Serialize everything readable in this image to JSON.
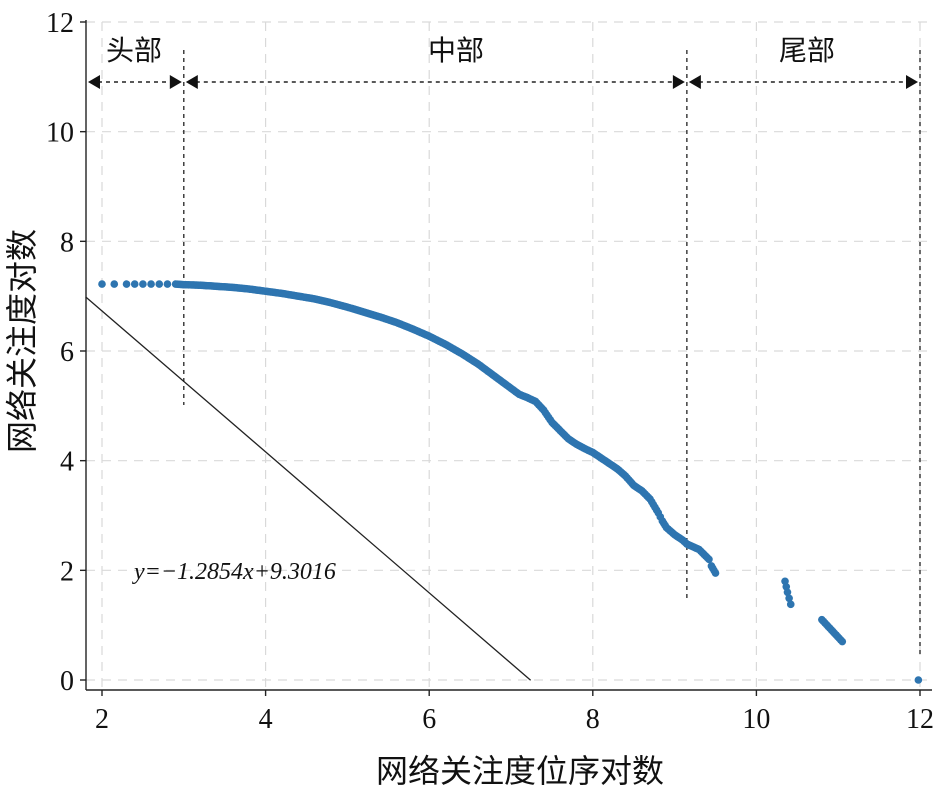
{
  "chart_data": {
    "type": "scatter",
    "title": "",
    "xlabel": "网络关注度位序对数",
    "ylabel": "网络关注度对数",
    "xlim": [
      1.8,
      12.2
    ],
    "ylim": [
      -0.2,
      12
    ],
    "xticks": [
      2,
      4,
      6,
      8,
      10,
      12
    ],
    "yticks": [
      0,
      2,
      4,
      6,
      8,
      10,
      12
    ],
    "grid": true,
    "segments": [
      {
        "label": "头部",
        "x_start": 1.8,
        "x_end": 3.0
      },
      {
        "label": "中部",
        "x_start": 3.0,
        "x_end": 9.15
      },
      {
        "label": "尾部",
        "x_start": 9.15,
        "x_end": 12.0
      }
    ],
    "fit": {
      "label": "y=−1.2854x+9.3016",
      "slope": -1.2854,
      "intercept": 9.3016,
      "x_range": [
        1.8,
        7.24
      ]
    },
    "curve_points": [
      [
        2.0,
        7.22
      ],
      [
        2.15,
        7.22
      ],
      [
        2.3,
        7.22
      ],
      [
        2.4,
        7.22
      ],
      [
        2.5,
        7.22
      ],
      [
        2.6,
        7.22
      ],
      [
        2.7,
        7.22
      ],
      [
        2.8,
        7.22
      ],
      [
        2.9,
        7.22
      ],
      [
        3.0,
        7.21
      ],
      [
        3.2,
        7.2
      ],
      [
        3.4,
        7.18
      ],
      [
        3.6,
        7.16
      ],
      [
        3.8,
        7.13
      ],
      [
        4.0,
        7.09
      ],
      [
        4.2,
        7.05
      ],
      [
        4.4,
        7.0
      ],
      [
        4.6,
        6.95
      ],
      [
        4.8,
        6.88
      ],
      [
        5.0,
        6.8
      ],
      [
        5.2,
        6.71
      ],
      [
        5.4,
        6.62
      ],
      [
        5.6,
        6.52
      ],
      [
        5.8,
        6.4
      ],
      [
        6.0,
        6.27
      ],
      [
        6.2,
        6.12
      ],
      [
        6.4,
        5.95
      ],
      [
        6.6,
        5.76
      ],
      [
        6.8,
        5.54
      ],
      [
        6.9,
        5.43
      ],
      [
        7.0,
        5.32
      ],
      [
        7.1,
        5.21
      ],
      [
        7.2,
        5.15
      ],
      [
        7.3,
        5.08
      ],
      [
        7.4,
        4.92
      ],
      [
        7.5,
        4.7
      ],
      [
        7.6,
        4.55
      ],
      [
        7.7,
        4.4
      ],
      [
        7.8,
        4.3
      ],
      [
        7.9,
        4.22
      ],
      [
        8.0,
        4.15
      ],
      [
        8.1,
        4.05
      ],
      [
        8.2,
        3.95
      ],
      [
        8.3,
        3.85
      ],
      [
        8.4,
        3.72
      ],
      [
        8.5,
        3.55
      ],
      [
        8.6,
        3.45
      ],
      [
        8.7,
        3.3
      ],
      [
        8.8,
        3.05
      ],
      [
        8.85,
        2.9
      ],
      [
        8.9,
        2.78
      ],
      [
        9.0,
        2.65
      ],
      [
        9.1,
        2.55
      ],
      [
        9.15,
        2.48
      ],
      [
        9.3,
        2.38
      ],
      [
        9.42,
        2.2
      ],
      [
        9.45,
        2.08
      ],
      [
        9.5,
        1.95
      ],
      [
        10.35,
        1.8
      ],
      [
        10.38,
        1.6
      ],
      [
        10.42,
        1.38
      ],
      [
        10.8,
        1.1
      ],
      [
        11.05,
        0.7
      ],
      [
        11.98,
        0.0
      ]
    ]
  }
}
